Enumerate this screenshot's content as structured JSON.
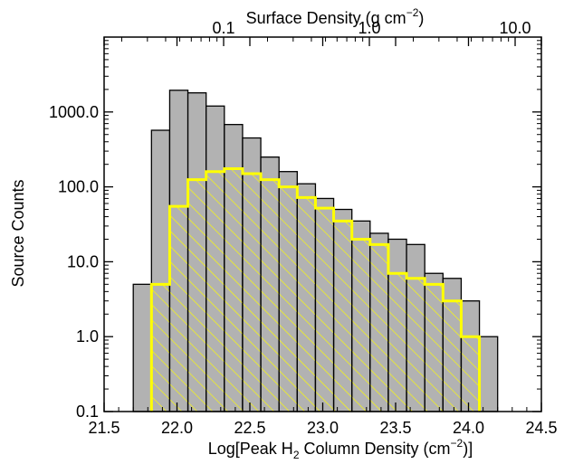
{
  "chart_data": {
    "type": "bar",
    "subtype": "histogram",
    "x_axis": {
      "label_main": "Log[Peak H",
      "label_sub": "2",
      "label_mid": " Column Density (cm",
      "label_sup": "−2",
      "label_end": ")]",
      "range": [
        21.5,
        24.5
      ],
      "ticks": [
        21.5,
        22.0,
        22.5,
        23.0,
        23.5,
        24.0,
        24.5
      ],
      "tick_labels": [
        "21.5",
        "22.0",
        "22.5",
        "23.0",
        "23.5",
        "24.0",
        "24.5"
      ]
    },
    "top_axis": {
      "label_main": "Surface Density (g cm",
      "label_sup": "−2",
      "label_end": ")",
      "tick_values": [
        0.1,
        1.0,
        10.0
      ],
      "tick_positions_log_column_density": [
        22.32,
        23.32,
        24.32
      ],
      "tick_labels": [
        "0.1",
        "1.0",
        "10.0"
      ]
    },
    "y_axis": {
      "label": "Source Counts",
      "scale": "log",
      "range": [
        0.1,
        10000
      ],
      "ticks": [
        0.1,
        1,
        10,
        100,
        1000
      ],
      "tick_labels": [
        "0.1",
        "1.0",
        "10.0",
        "100.0",
        "1000.0"
      ]
    },
    "bin_edges": [
      21.7,
      21.825,
      21.95,
      22.075,
      22.2,
      22.325,
      22.45,
      22.575,
      22.7,
      22.825,
      22.95,
      23.075,
      23.2,
      23.325,
      23.45,
      23.575,
      23.7,
      23.825,
      23.95,
      24.075,
      24.2,
      24.325
    ],
    "series": [
      {
        "name": "",
        "style": "gray-filled",
        "values": [
          5,
          570,
          1950,
          1800,
          1200,
          680,
          450,
          250,
          160,
          110,
          70,
          50,
          35,
          24,
          20,
          17,
          7,
          6,
          3,
          1,
          null
        ]
      },
      {
        "name": "",
        "style": "yellow-outline-hatched",
        "values": [
          null,
          5,
          55,
          125,
          160,
          175,
          150,
          125,
          100,
          72,
          52,
          35,
          20,
          17,
          7,
          6,
          5,
          3,
          1,
          null,
          null
        ]
      }
    ],
    "grid": false,
    "colors": {
      "fill": "#b2b2b2",
      "outline": "#000000",
      "highlight": "#ffff00"
    }
  }
}
